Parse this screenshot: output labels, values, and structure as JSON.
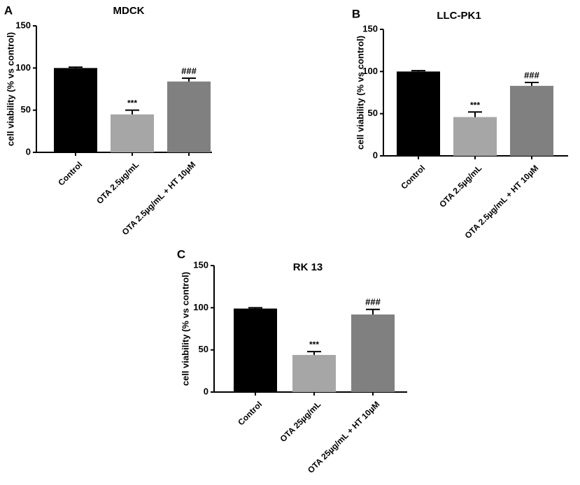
{
  "chart_data": [
    {
      "type": "bar",
      "panel_label": "A",
      "title": "MDCK",
      "xlabel": "",
      "ylabel": "cell viability (% vs control)",
      "ylim": [
        0,
        150
      ],
      "yticks": [
        0,
        50,
        100,
        150
      ],
      "categories": [
        "Control",
        "OTA 2.5µg/mL",
        "OTA 2.5µg/mL + HT 10µM"
      ],
      "values": [
        100,
        45,
        84
      ],
      "errors": [
        1,
        5,
        4
      ],
      "annotations": [
        "",
        "***",
        "###"
      ],
      "colors": [
        "#000000",
        "#a6a6a6",
        "#808080"
      ]
    },
    {
      "type": "bar",
      "panel_label": "B",
      "title": "LLC-PK1",
      "xlabel": "",
      "ylabel": "cell viability (% vs control)",
      "ylim": [
        0,
        150
      ],
      "yticks": [
        0,
        50,
        100,
        150
      ],
      "categories": [
        "Control",
        "OTA 2.5µg/mL",
        "OTA 2.5µg/mL + HT 10µM"
      ],
      "values": [
        100,
        46,
        83
      ],
      "errors": [
        1,
        6,
        4
      ],
      "annotations": [
        "",
        "***",
        "###"
      ],
      "colors": [
        "#000000",
        "#a6a6a6",
        "#808080"
      ]
    },
    {
      "type": "bar",
      "panel_label": "C",
      "title": "RK 13",
      "xlabel": "",
      "ylabel": "cell viability (% vs control)",
      "ylim": [
        0,
        150
      ],
      "yticks": [
        0,
        50,
        100,
        150
      ],
      "categories": [
        "Control",
        "OTA 25µg/mL",
        "OTA 25µg/mL + HT 10µM"
      ],
      "values": [
        99,
        44,
        92
      ],
      "errors": [
        1,
        4,
        6
      ],
      "annotations": [
        "",
        "***",
        "###"
      ],
      "colors": [
        "#000000",
        "#a6a6a6",
        "#808080"
      ]
    }
  ]
}
